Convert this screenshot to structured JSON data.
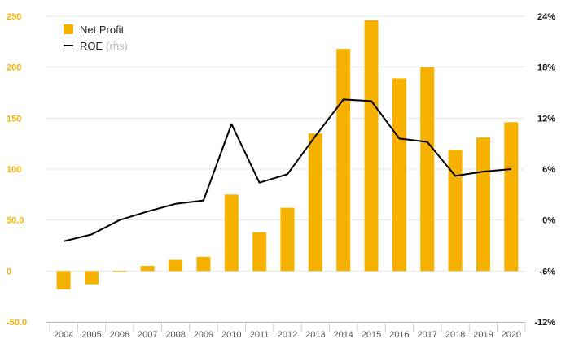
{
  "colors": {
    "bar": "#f5b000",
    "line": "#000000",
    "left_axis_text": "#f5b000",
    "right_axis_text": "#111111",
    "grid": "#e6e6e6"
  },
  "legend": {
    "bar_label": "Net Profit",
    "line_label": "ROE",
    "line_note": "(rhs)"
  },
  "chart_data": {
    "type": "bar",
    "categories": [
      "2004",
      "2005",
      "2006",
      "2007",
      "2008",
      "2009",
      "2010",
      "2011",
      "2012",
      "2013",
      "2014",
      "2015",
      "2016",
      "2017",
      "2018",
      "2019",
      "2020"
    ],
    "series": [
      {
        "name": "Net Profit",
        "type": "bar",
        "axis": "left",
        "values": [
          -18,
          -13,
          -1,
          5,
          11,
          14,
          75,
          38,
          62,
          135,
          218,
          246,
          189,
          200,
          119,
          131,
          146
        ]
      },
      {
        "name": "ROE",
        "type": "line",
        "axis": "right",
        "unit": "%",
        "values": [
          -2.5,
          -1.7,
          0.0,
          1.0,
          1.9,
          2.3,
          11.3,
          4.4,
          5.4,
          9.9,
          14.2,
          14.0,
          9.6,
          9.2,
          5.2,
          5.7,
          6.0
        ]
      }
    ],
    "y_left": {
      "ylim": [
        -50,
        250
      ],
      "ticks": [
        250,
        200,
        150,
        100,
        50.0,
        0,
        -50.0
      ],
      "tick_labels": [
        "250",
        "200",
        "150",
        "100",
        "50.0",
        "0",
        "-50.0"
      ]
    },
    "y_right": {
      "ylim": [
        -12,
        24
      ],
      "ticks": [
        24,
        18,
        12,
        6,
        0,
        -6,
        -12
      ],
      "tick_labels": [
        "24%",
        "18%",
        "12%",
        "6%",
        "0%",
        "-6%",
        "-12%"
      ]
    },
    "grid": true,
    "legend_position": "top-left"
  }
}
